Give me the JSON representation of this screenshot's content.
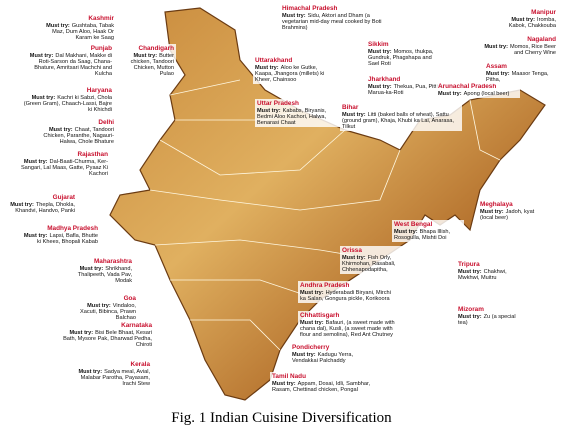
{
  "regions": [
    {
      "name": "Kashmir",
      "label": "Must try:",
      "dishes": "Gushtaba, Tabak Maz, Dum Aloo, Haak Or Karam ke Saag"
    },
    {
      "name": "Punjab",
      "label": "Must try:",
      "dishes": "Dal Makhani, Makke di Roti-Sarson da Saag, Chana-Bhature, Amritsari Machchi and Kulcha"
    },
    {
      "name": "Chandigarh",
      "label": "Must try:",
      "dishes": "Butter chicken, Tandoori Chicken, Mutton Pulao"
    },
    {
      "name": "Haryana",
      "label": "Must try:",
      "dishes": "Kachri ki Sabzi, Chola (Green Gram), Chaach-Lassi, Bajre ki Khichdi"
    },
    {
      "name": "Delhi",
      "label": "Must try:",
      "dishes": "Chaat, Tandoori Chicken, Paranthe, Nagauri-Halwa, Chole Bhature"
    },
    {
      "name": "Rajasthan",
      "label": "Must try:",
      "dishes": "Dal-Baati-Churma, Ker-Sangari, Lal Maas, Gatte, Pyaaz Ki Kachori"
    },
    {
      "name": "Gujarat",
      "label": "Must try:",
      "dishes": "Thepla, Dhokla, Khandvi, Handvo, Panki"
    },
    {
      "name": "Madhya Pradesh",
      "label": "Must try:",
      "dishes": "Lapsi, Bafla, Bhutte ki Khees, Bhopali Kabab"
    },
    {
      "name": "Maharashtra",
      "label": "Must try:",
      "dishes": "Shrikhand, Thalipeeth, Vada Pav, Modak"
    },
    {
      "name": "Goa",
      "label": "Must try:",
      "dishes": "Vindaloo, Xacuti, Bibinca, Prawn Balchao"
    },
    {
      "name": "Karnataka",
      "label": "Must try:",
      "dishes": "Bisi Bele Bhaat, Kesari Bath, Mysore Pak, Dharwad Pedha, Chiroti"
    },
    {
      "name": "Kerala",
      "label": "Must try:",
      "dishes": "Sadya meal, Avial, Malabar Parotha, Payasam, Irachi Stew"
    },
    {
      "name": "Himachal Pradesh",
      "label": "Must try:",
      "dishes": "Sidu, Aktori and Dham (a vegetarian mid-day meal cooked by Boti Brahmins)"
    },
    {
      "name": "Uttarakhand",
      "label": "Must try:",
      "dishes": "Aloo ke Gutke, Kaapa, Jhangora (millets) ki Kheer, Chainsoo"
    },
    {
      "name": "Uttar Pradesh",
      "label": "Must try:",
      "dishes": "Kababs, Biryanis, Bedmi Aloo Kachori, Halwa, Benarasi Chaat"
    },
    {
      "name": "Sikkim",
      "label": "Must try:",
      "dishes": "Momos, thukpa, Gundruk, Phagshapa and Sael Roti"
    },
    {
      "name": "Jharkhand",
      "label": "Must try:",
      "dishes": "Thekua, Pua, Pittha, Marua-ka-Roti"
    },
    {
      "name": "Bihar",
      "label": "Must try:",
      "dishes": "Litti (baked balls of wheat), Sattu (ground gram), Khaja, Khubi ka Lai, Anarasa, Tilkut"
    },
    {
      "name": "Arunachal Pradesh",
      "label": "Must try:",
      "dishes": "Apong (local beer)"
    },
    {
      "name": "Manipur",
      "label": "Must try:",
      "dishes": "Iromba, Kabok, Chakkouba"
    },
    {
      "name": "Nagaland",
      "label": "Must try:",
      "dishes": "Momos, Rice Beer and Cherry Wine"
    },
    {
      "name": "Assam",
      "label": "Must try:",
      "dishes": "Maasor Tenga, Pitha,"
    },
    {
      "name": "Meghalaya",
      "label": "Must try:",
      "dishes": "Jadoh, kyat (local beer)"
    },
    {
      "name": "West Bengal",
      "label": "Must try:",
      "dishes": "Bhapa Illish, Rosogulla, Mishti Doi"
    },
    {
      "name": "Tripura",
      "label": "Must try:",
      "dishes": "Chakhwi, Mwkhwi, Muitru"
    },
    {
      "name": "Mizoram",
      "label": "Must try:",
      "dishes": "Zu (a special tea)"
    },
    {
      "name": "Orissa",
      "label": "Must try:",
      "dishes": "Fish Orly, Khirmohan, Rasabali, Chhenapodapitha,"
    },
    {
      "name": "Andhra Pradesh",
      "label": "Must try:",
      "dishes": "Hyderabadi Biryani, Mirchi ka Salan, Gongura pickle, Korikoora"
    },
    {
      "name": "Chhattisgarh",
      "label": "Must try:",
      "dishes": "Bafauri, (a sweet made with chana dal), Kusli, (a sweet made with flour and semolina), Red Ant Chutney"
    },
    {
      "name": "Pondicherry",
      "label": "Must try:",
      "dishes": "Kadugu Yerra, Vendakkai Palchaddy"
    },
    {
      "name": "Tamil Nadu",
      "label": "Must try:",
      "dishes": "Appam, Dosai, Idli, Sambhar, Rasam, Chettinad chicken, Pongal"
    }
  ],
  "caption": "Fig. 1 Indian Cuisine Diversification"
}
